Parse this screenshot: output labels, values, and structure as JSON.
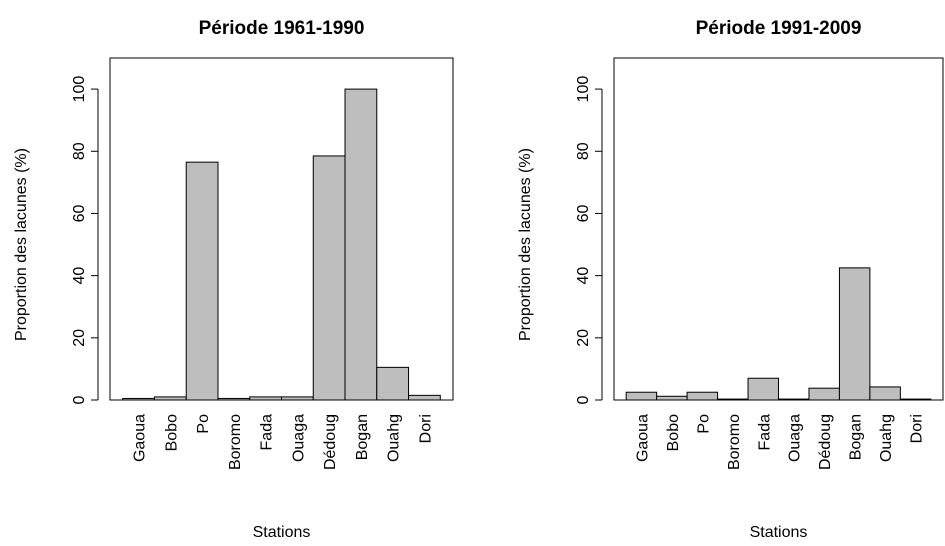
{
  "chart_data": [
    {
      "type": "bar",
      "title": "Période 1961-1990",
      "x_label": "Stations",
      "y_label": "Proportion des lacunes (%)",
      "categories": [
        "Gaoua",
        "Bobo",
        "Po",
        "Boromo",
        "Fada",
        "Ouaga",
        "Dédoug",
        "Bogan",
        "Ouahg",
        "Dori"
      ],
      "values": [
        0.5,
        1,
        76.5,
        0.5,
        1,
        1,
        78.5,
        100,
        10.5,
        1.5
      ],
      "color": "#bebebe",
      "ylim": [
        0,
        110
      ],
      "yticks": [
        0,
        20,
        40,
        60,
        80,
        100
      ]
    },
    {
      "type": "bar",
      "title": "Période 1991-2009",
      "x_label": "Stations",
      "y_label": "Proportion des lacunes (%)",
      "categories": [
        "Gaoua",
        "Bobo",
        "Po",
        "Boromo",
        "Fada",
        "Ouaga",
        "Dédoug",
        "Bogan",
        "Ouahg",
        "Dori"
      ],
      "values": [
        2.5,
        1.2,
        2.5,
        0.3,
        7,
        0.3,
        3.8,
        42.5,
        4.2,
        0.3
      ],
      "color": "#bebebe",
      "ylim": [
        0,
        110
      ],
      "yticks": [
        0,
        20,
        40,
        60,
        80,
        100
      ]
    }
  ]
}
